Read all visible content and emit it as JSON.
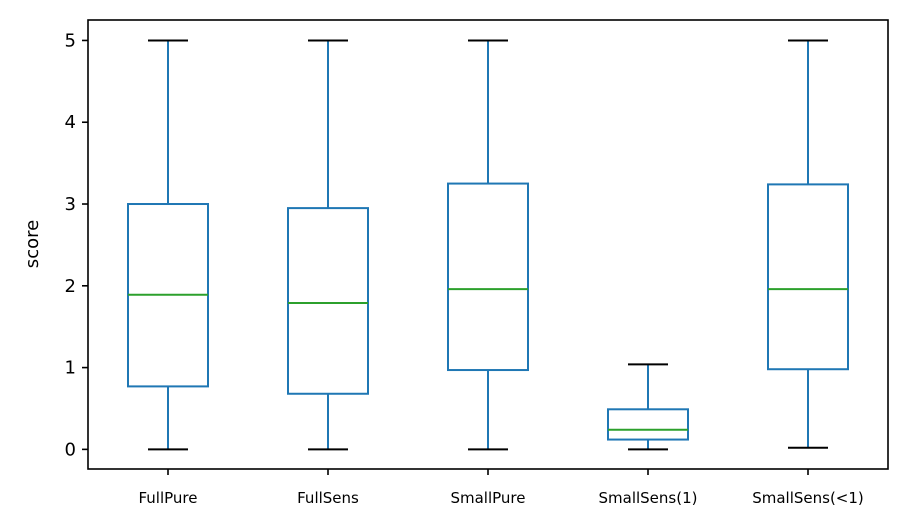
{
  "chart_data": {
    "type": "box",
    "title": "",
    "xlabel": "",
    "ylabel": "score",
    "ylim": [
      -0.24,
      5.25
    ],
    "yticks": [
      0,
      1,
      2,
      3,
      4,
      5
    ],
    "grid": false,
    "colors": {
      "box": "#1f77b4",
      "median": "#2ca02c",
      "cap": "#000000"
    },
    "categories": [
      "FullPure",
      "FullSens",
      "SmallPure",
      "SmallSens(1)",
      "SmallSens(<1)"
    ],
    "boxes": [
      {
        "category": "FullPure",
        "whisker_low": 0.0,
        "q1": 0.77,
        "median": 1.89,
        "q3": 3.0,
        "whisker_high": 5.0
      },
      {
        "category": "FullSens",
        "whisker_low": 0.0,
        "q1": 0.68,
        "median": 1.79,
        "q3": 2.95,
        "whisker_high": 5.0
      },
      {
        "category": "SmallPure",
        "whisker_low": 0.0,
        "q1": 0.97,
        "median": 1.96,
        "q3": 3.25,
        "whisker_high": 5.0
      },
      {
        "category": "SmallSens(1)",
        "whisker_low": 0.0,
        "q1": 0.12,
        "median": 0.24,
        "q3": 0.49,
        "whisker_high": 1.04
      },
      {
        "category": "SmallSens(<1)",
        "whisker_low": 0.02,
        "q1": 0.98,
        "median": 1.96,
        "q3": 3.24,
        "whisker_high": 5.0
      }
    ]
  }
}
